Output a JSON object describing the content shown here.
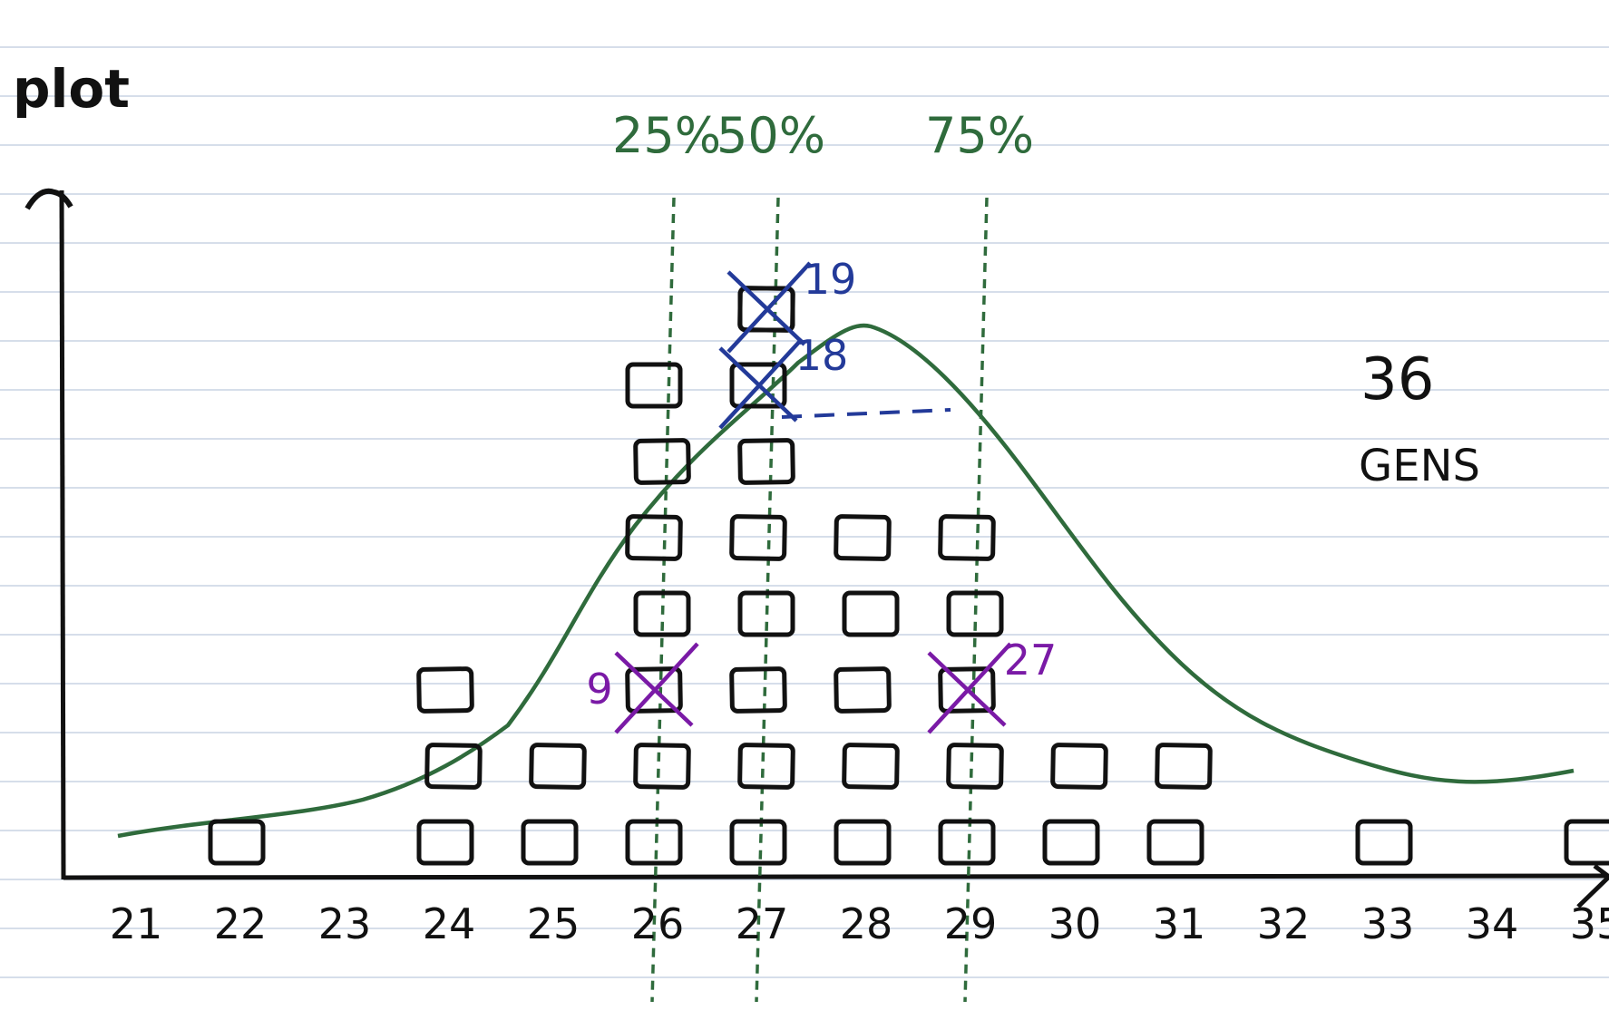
{
  "texts": {
    "y_label": "plot",
    "note_line1": "36",
    "note_line2": "GENS"
  },
  "percentiles": [
    {
      "label": "25%",
      "value": 26.0
    },
    {
      "label": "50%",
      "value": 27.0
    },
    {
      "label": "75%",
      "value": 29.0
    }
  ],
  "x_ticks": [
    "21",
    "22",
    "23",
    "24",
    "25",
    "26",
    "27",
    "28",
    "29",
    "30",
    "31",
    "32",
    "33",
    "34",
    "35"
  ],
  "markers": [
    {
      "label": "9",
      "category": "26",
      "level": 3,
      "color": "#7a1aa6"
    },
    {
      "label": "27",
      "category": "29",
      "level": 3,
      "color": "#7a1aa6"
    },
    {
      "label": "18",
      "category": "27",
      "level": 7,
      "color": "#233a99"
    },
    {
      "label": "19",
      "category": "27",
      "level": 8,
      "color": "#233a99"
    }
  ],
  "chart_data": {
    "type": "scatter",
    "title": "",
    "xlabel": "",
    "ylabel": "plot",
    "categories": [
      "21",
      "22",
      "23",
      "24",
      "25",
      "26",
      "27",
      "28",
      "29",
      "30",
      "31",
      "32",
      "33",
      "34",
      "35"
    ],
    "counts": [
      0,
      1,
      0,
      3,
      2,
      7,
      8,
      5,
      5,
      2,
      2,
      0,
      1,
      0,
      1
    ],
    "curve": "normal",
    "grid": true
  },
  "colors": {
    "ink": "#111111",
    "curve": "#2f6b3c",
    "percentile_line": "#2f6b3c",
    "cross_blue": "#233a99",
    "cross_purple": "#7a1aa6",
    "ruled_line": "#c9d3e3"
  }
}
